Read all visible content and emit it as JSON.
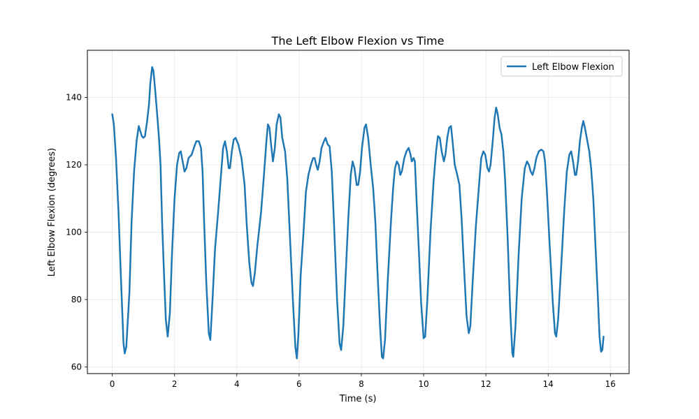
{
  "chart_data": {
    "type": "line",
    "title": "The Left Elbow Flexion vs Time",
    "xlabel": "Time (s)",
    "ylabel": "Left Elbow Flexion (degrees)",
    "xlim": [
      -0.8,
      16.6
    ],
    "ylim": [
      58,
      154
    ],
    "xticks": [
      0,
      2,
      4,
      6,
      8,
      10,
      12,
      14,
      16
    ],
    "yticks": [
      60,
      80,
      100,
      120,
      140
    ],
    "grid": true,
    "legend_position": "top-right",
    "series": [
      {
        "name": "Left Elbow Flexion",
        "color": "#1f77b4",
        "points": [
          [
            0.0,
            135
          ],
          [
            0.05,
            132
          ],
          [
            0.12,
            122
          ],
          [
            0.2,
            106
          ],
          [
            0.28,
            86
          ],
          [
            0.36,
            67
          ],
          [
            0.4,
            64
          ],
          [
            0.45,
            66
          ],
          [
            0.55,
            82
          ],
          [
            0.62,
            103
          ],
          [
            0.7,
            118
          ],
          [
            0.78,
            127
          ],
          [
            0.85,
            131.5
          ],
          [
            0.9,
            130
          ],
          [
            0.95,
            128.5
          ],
          [
            1.0,
            128
          ],
          [
            1.05,
            128.5
          ],
          [
            1.12,
            133
          ],
          [
            1.18,
            138
          ],
          [
            1.22,
            144
          ],
          [
            1.28,
            149
          ],
          [
            1.32,
            148
          ],
          [
            1.38,
            142
          ],
          [
            1.45,
            134
          ],
          [
            1.5,
            128
          ],
          [
            1.55,
            120
          ],
          [
            1.6,
            103
          ],
          [
            1.66,
            88
          ],
          [
            1.72,
            74
          ],
          [
            1.78,
            69
          ],
          [
            1.85,
            76
          ],
          [
            1.92,
            94
          ],
          [
            2.0,
            110
          ],
          [
            2.08,
            120
          ],
          [
            2.15,
            123.5
          ],
          [
            2.2,
            124
          ],
          [
            2.26,
            121
          ],
          [
            2.32,
            118
          ],
          [
            2.38,
            119
          ],
          [
            2.45,
            122
          ],
          [
            2.55,
            123
          ],
          [
            2.62,
            125
          ],
          [
            2.7,
            127
          ],
          [
            2.78,
            127
          ],
          [
            2.85,
            125
          ],
          [
            2.9,
            118
          ],
          [
            2.95,
            103
          ],
          [
            3.02,
            85
          ],
          [
            3.1,
            70
          ],
          [
            3.15,
            68
          ],
          [
            3.22,
            80
          ],
          [
            3.3,
            95
          ],
          [
            3.4,
            106
          ],
          [
            3.5,
            118
          ],
          [
            3.56,
            125
          ],
          [
            3.62,
            127
          ],
          [
            3.68,
            124
          ],
          [
            3.74,
            119
          ],
          [
            3.78,
            119
          ],
          [
            3.84,
            124
          ],
          [
            3.9,
            127.5
          ],
          [
            3.96,
            128
          ],
          [
            4.05,
            126
          ],
          [
            4.15,
            122
          ],
          [
            4.25,
            114
          ],
          [
            4.32,
            102
          ],
          [
            4.4,
            91
          ],
          [
            4.47,
            85
          ],
          [
            4.52,
            84
          ],
          [
            4.58,
            88
          ],
          [
            4.66,
            96
          ],
          [
            4.78,
            106
          ],
          [
            4.88,
            118
          ],
          [
            4.95,
            127
          ],
          [
            5.0,
            132
          ],
          [
            5.05,
            131
          ],
          [
            5.1,
            126
          ],
          [
            5.16,
            121
          ],
          [
            5.22,
            125
          ],
          [
            5.28,
            132
          ],
          [
            5.35,
            135
          ],
          [
            5.4,
            134
          ],
          [
            5.46,
            128
          ],
          [
            5.55,
            124
          ],
          [
            5.62,
            116
          ],
          [
            5.7,
            100
          ],
          [
            5.8,
            80
          ],
          [
            5.88,
            66
          ],
          [
            5.93,
            62.5
          ],
          [
            5.98,
            70
          ],
          [
            6.05,
            87
          ],
          [
            6.15,
            101
          ],
          [
            6.22,
            112
          ],
          [
            6.3,
            117
          ],
          [
            6.38,
            120
          ],
          [
            6.45,
            122
          ],
          [
            6.5,
            122
          ],
          [
            6.55,
            120
          ],
          [
            6.6,
            118.5
          ],
          [
            6.66,
            121
          ],
          [
            6.72,
            125
          ],
          [
            6.8,
            127
          ],
          [
            6.85,
            128
          ],
          [
            6.92,
            126
          ],
          [
            6.98,
            125.5
          ],
          [
            7.05,
            118
          ],
          [
            7.12,
            103
          ],
          [
            7.22,
            80
          ],
          [
            7.3,
            67
          ],
          [
            7.35,
            65
          ],
          [
            7.42,
            72
          ],
          [
            7.5,
            88
          ],
          [
            7.58,
            104
          ],
          [
            7.66,
            117
          ],
          [
            7.72,
            121
          ],
          [
            7.78,
            119
          ],
          [
            7.85,
            114
          ],
          [
            7.9,
            114
          ],
          [
            7.96,
            118
          ],
          [
            8.02,
            125
          ],
          [
            8.1,
            131
          ],
          [
            8.15,
            132
          ],
          [
            8.22,
            128
          ],
          [
            8.3,
            120
          ],
          [
            8.38,
            113
          ],
          [
            8.45,
            103
          ],
          [
            8.52,
            88
          ],
          [
            8.6,
            72
          ],
          [
            8.66,
            63
          ],
          [
            8.7,
            62.5
          ],
          [
            8.76,
            68
          ],
          [
            8.85,
            86
          ],
          [
            8.95,
            103
          ],
          [
            9.02,
            113
          ],
          [
            9.08,
            119
          ],
          [
            9.14,
            121
          ],
          [
            9.2,
            120
          ],
          [
            9.25,
            117
          ],
          [
            9.3,
            118
          ],
          [
            9.38,
            122
          ],
          [
            9.45,
            124
          ],
          [
            9.52,
            125
          ],
          [
            9.58,
            123
          ],
          [
            9.62,
            121
          ],
          [
            9.68,
            122
          ],
          [
            9.72,
            121
          ],
          [
            9.78,
            108
          ],
          [
            9.85,
            94
          ],
          [
            9.92,
            79
          ],
          [
            10.0,
            68.5
          ],
          [
            10.05,
            69
          ],
          [
            10.12,
            80
          ],
          [
            10.22,
            100
          ],
          [
            10.32,
            115
          ],
          [
            10.4,
            124
          ],
          [
            10.46,
            128.5
          ],
          [
            10.52,
            128
          ],
          [
            10.58,
            124
          ],
          [
            10.65,
            121
          ],
          [
            10.7,
            123
          ],
          [
            10.76,
            128
          ],
          [
            10.82,
            131
          ],
          [
            10.88,
            131.5
          ],
          [
            10.94,
            126
          ],
          [
            11.0,
            120
          ],
          [
            11.08,
            117
          ],
          [
            11.15,
            114
          ],
          [
            11.22,
            104
          ],
          [
            11.3,
            89
          ],
          [
            11.38,
            75
          ],
          [
            11.45,
            70
          ],
          [
            11.5,
            72
          ],
          [
            11.58,
            86
          ],
          [
            11.68,
            102
          ],
          [
            11.78,
            114
          ],
          [
            11.85,
            122
          ],
          [
            11.92,
            124
          ],
          [
            11.98,
            123
          ],
          [
            12.05,
            119
          ],
          [
            12.1,
            118
          ],
          [
            12.15,
            120
          ],
          [
            12.22,
            127
          ],
          [
            12.28,
            134
          ],
          [
            12.33,
            137
          ],
          [
            12.38,
            135
          ],
          [
            12.44,
            131
          ],
          [
            12.5,
            129
          ],
          [
            12.56,
            124
          ],
          [
            12.62,
            115
          ],
          [
            12.7,
            98
          ],
          [
            12.78,
            77
          ],
          [
            12.85,
            64
          ],
          [
            12.88,
            63
          ],
          [
            12.95,
            72
          ],
          [
            13.05,
            93
          ],
          [
            13.15,
            110
          ],
          [
            13.25,
            119
          ],
          [
            13.32,
            121
          ],
          [
            13.38,
            120
          ],
          [
            13.44,
            118
          ],
          [
            13.5,
            117
          ],
          [
            13.56,
            119
          ],
          [
            13.62,
            122
          ],
          [
            13.7,
            124
          ],
          [
            13.78,
            124.5
          ],
          [
            13.85,
            124
          ],
          [
            13.9,
            121
          ],
          [
            13.96,
            112
          ],
          [
            14.05,
            96
          ],
          [
            14.15,
            79
          ],
          [
            14.22,
            70
          ],
          [
            14.26,
            69
          ],
          [
            14.32,
            74
          ],
          [
            14.42,
            90
          ],
          [
            14.52,
            107
          ],
          [
            14.6,
            118
          ],
          [
            14.68,
            123
          ],
          [
            14.74,
            124
          ],
          [
            14.8,
            121
          ],
          [
            14.86,
            117
          ],
          [
            14.9,
            117
          ],
          [
            14.96,
            121
          ],
          [
            15.02,
            127
          ],
          [
            15.08,
            131
          ],
          [
            15.13,
            133
          ],
          [
            15.18,
            131
          ],
          [
            15.24,
            128
          ],
          [
            15.32,
            124
          ],
          [
            15.38,
            119
          ],
          [
            15.45,
            110
          ],
          [
            15.52,
            96
          ],
          [
            15.6,
            80
          ],
          [
            15.65,
            69
          ],
          [
            15.7,
            64.5
          ],
          [
            15.74,
            65
          ],
          [
            15.78,
            69
          ]
        ]
      }
    ]
  }
}
